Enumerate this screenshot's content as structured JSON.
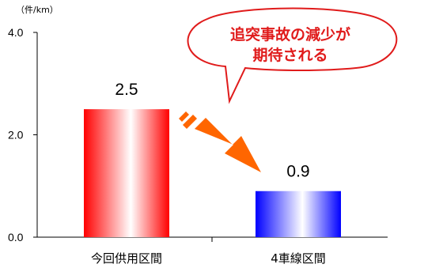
{
  "chart_data": {
    "type": "bar",
    "categories": [
      "今回供用区間",
      "4車線区間"
    ],
    "values": [
      2.5,
      0.9
    ],
    "value_labels": [
      "2.5",
      "0.9"
    ],
    "ylim": [
      0,
      4
    ],
    "yticks": [
      "0.0",
      "2.0",
      "4.0"
    ],
    "ylabel": "（件/km）",
    "grid": false,
    "bar_colors": [
      "#ff0000",
      "#0000ff"
    ],
    "annotation": {
      "lines": [
        "追突事故の減少が",
        "期待される"
      ],
      "color": "#e01b1b",
      "arrow_color": "#ff6600"
    }
  }
}
